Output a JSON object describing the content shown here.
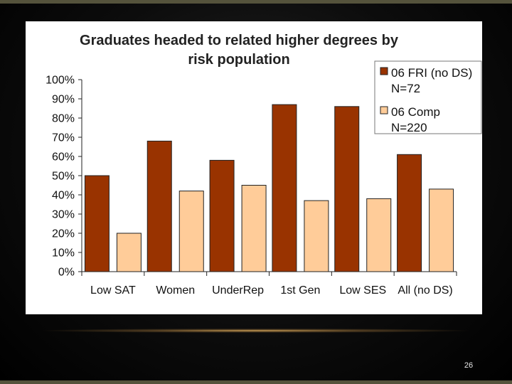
{
  "slide": {
    "number": "26"
  },
  "colors": {
    "series1": "#993300",
    "series2": "#ffcc99",
    "stroke": "#222222",
    "page_bg": "#000000",
    "panel_bg": "#ffffff"
  },
  "chart_data": {
    "type": "bar",
    "title_lines": [
      "Graduates headed to related higher degrees by",
      "risk population"
    ],
    "categories": [
      "Low SAT",
      "Women",
      "UnderRep",
      "1st Gen",
      "Low SES",
      "All (no DS)"
    ],
    "series": [
      {
        "name_lines": [
          "06 FRI (no DS)",
          "N=72"
        ],
        "values": [
          50,
          68,
          58,
          87,
          86,
          61
        ]
      },
      {
        "name_lines": [
          "06 Comp",
          "N=220"
        ],
        "values": [
          20,
          42,
          45,
          37,
          38,
          43
        ]
      }
    ],
    "ylim": [
      0,
      100
    ],
    "yticks": [
      "0%",
      "10%",
      "20%",
      "30%",
      "40%",
      "50%",
      "60%",
      "70%",
      "80%",
      "90%",
      "100%"
    ],
    "grid": false,
    "legend_position": "top-right"
  }
}
